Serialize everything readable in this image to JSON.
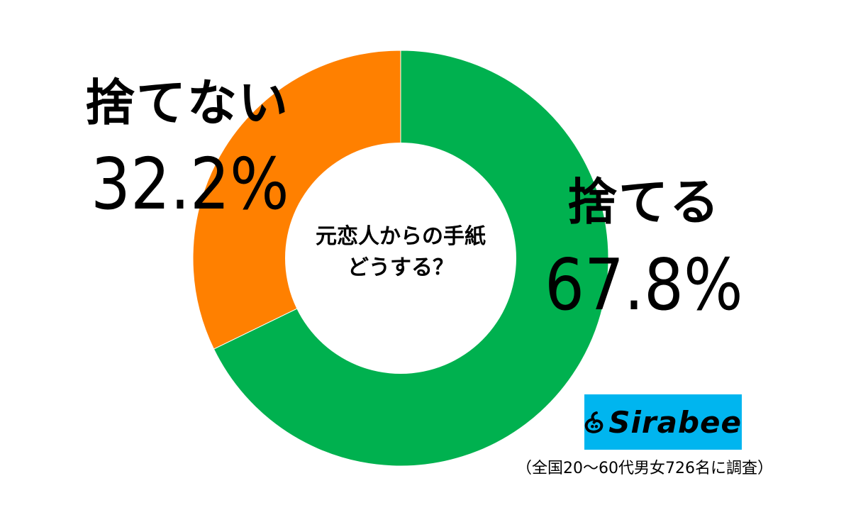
{
  "chart_data": {
    "type": "pie",
    "variant": "donut",
    "title": "元恋人からの手紙\nどうする？",
    "title_lines": [
      "元恋人からの手紙",
      "どうする？"
    ],
    "slices": [
      {
        "label": "捨てる",
        "value": 67.8,
        "value_text": "67.8%",
        "color": "#00b14f"
      },
      {
        "label": "捨てない",
        "value": 32.2,
        "value_text": "32.2%",
        "color": "#ff8000"
      }
    ],
    "start_angle": "12 o'clock",
    "direction": "clockwise",
    "legend": "none"
  },
  "branding": {
    "logo_text": "Sirabee",
    "logo_bg": "#00b5ef",
    "logo_icon": "sirabee-logo-icon"
  },
  "footnote": "（全国20～60代男女726名に調査）"
}
